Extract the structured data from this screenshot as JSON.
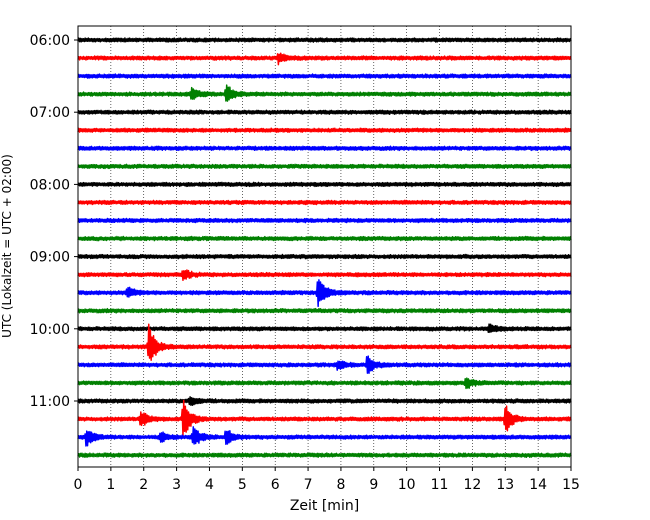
{
  "chart_data": {
    "type": "line",
    "title": "",
    "xlabel": "Zeit  [min]",
    "ylabel": "UTC (Lokalzeit = UTC + 02:00)",
    "xlim": [
      0,
      15
    ],
    "x_ticks": [
      "0",
      "1",
      "2",
      "3",
      "4",
      "5",
      "6",
      "7",
      "8",
      "9",
      "10",
      "11",
      "12",
      "13",
      "14",
      "15"
    ],
    "y_ticks": [
      {
        "label": "06:00",
        "trace": 0
      },
      {
        "label": "07:00",
        "trace": 4
      },
      {
        "label": "08:00",
        "trace": 8
      },
      {
        "label": "09:00",
        "trace": 12
      },
      {
        "label": "10:00",
        "trace": 16
      },
      {
        "label": "11:00",
        "trace": 20
      }
    ],
    "grid": "vertical dotted lines at each minute",
    "trace_interval_min": 15,
    "traces": [
      {
        "start": "06:00",
        "color": "#000000",
        "events": []
      },
      {
        "start": "06:15",
        "color": "#ff0000",
        "events": [
          {
            "t": 6.1,
            "amp": 0.6
          }
        ]
      },
      {
        "start": "06:30",
        "color": "#0000ff",
        "events": []
      },
      {
        "start": "06:45",
        "color": "#008000",
        "events": [
          {
            "t": 3.45,
            "amp": 0.7
          },
          {
            "t": 4.5,
            "amp": 1.1
          }
        ]
      },
      {
        "start": "07:00",
        "color": "#000000",
        "events": []
      },
      {
        "start": "07:15",
        "color": "#ff0000",
        "events": []
      },
      {
        "start": "07:30",
        "color": "#0000ff",
        "events": []
      },
      {
        "start": "07:45",
        "color": "#008000",
        "events": []
      },
      {
        "start": "08:00",
        "color": "#000000",
        "events": []
      },
      {
        "start": "08:15",
        "color": "#ff0000",
        "events": []
      },
      {
        "start": "08:30",
        "color": "#0000ff",
        "events": []
      },
      {
        "start": "08:45",
        "color": "#008000",
        "events": []
      },
      {
        "start": "09:00",
        "color": "#000000",
        "events": []
      },
      {
        "start": "09:15",
        "color": "#ff0000",
        "events": [
          {
            "t": 3.2,
            "amp": 0.6
          }
        ]
      },
      {
        "start": "09:30",
        "color": "#0000ff",
        "events": [
          {
            "t": 1.5,
            "amp": 0.6
          },
          {
            "t": 7.3,
            "amp": 1.8
          }
        ]
      },
      {
        "start": "09:45",
        "color": "#008000",
        "events": []
      },
      {
        "start": "10:00",
        "color": "#000000",
        "events": [
          {
            "t": 12.5,
            "amp": 0.5
          }
        ]
      },
      {
        "start": "10:15",
        "color": "#ff0000",
        "events": [
          {
            "t": 2.15,
            "amp": 2.4
          }
        ]
      },
      {
        "start": "10:30",
        "color": "#0000ff",
        "events": [
          {
            "t": 7.9,
            "amp": 0.5
          },
          {
            "t": 8.8,
            "amp": 1.1
          }
        ]
      },
      {
        "start": "10:45",
        "color": "#008000",
        "events": [
          {
            "t": 11.8,
            "amp": 0.7
          }
        ]
      },
      {
        "start": "11:00",
        "color": "#000000",
        "events": [
          {
            "t": 3.4,
            "amp": 0.6
          }
        ]
      },
      {
        "start": "11:15",
        "color": "#ff0000",
        "events": [
          {
            "t": 1.9,
            "amp": 1.0
          },
          {
            "t": 3.2,
            "amp": 2.2
          },
          {
            "t": 13.0,
            "amp": 1.6
          }
        ]
      },
      {
        "start": "11:30",
        "color": "#0000ff",
        "events": [
          {
            "t": 0.25,
            "amp": 1.0
          },
          {
            "t": 2.5,
            "amp": 0.6
          },
          {
            "t": 3.5,
            "amp": 1.2
          },
          {
            "t": 4.5,
            "amp": 1.0
          }
        ]
      },
      {
        "start": "11:45",
        "color": "#008000",
        "events": []
      }
    ]
  }
}
